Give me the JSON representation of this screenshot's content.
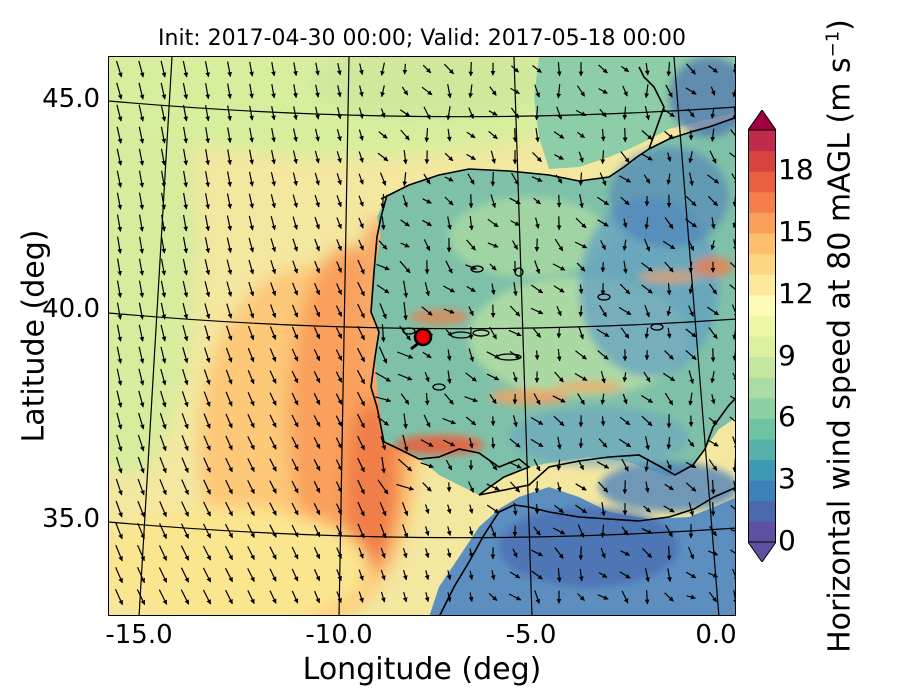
{
  "title": "Init: 2017-04-30 00:00; Valid: 2017-05-18 00:00",
  "x_axis": {
    "label": "Longitude (deg)",
    "ticks": [
      "-15.0",
      "-10.0",
      "-5.0",
      "0.0"
    ]
  },
  "y_axis": {
    "label": "Latitude (deg)",
    "ticks": [
      "45.0",
      "40.0",
      "35.0"
    ]
  },
  "colorbar": {
    "label_main": "Horizontal wind speed at 80 mAGL (m s",
    "label_exp": "−1",
    "label_close": ")",
    "ticks": [
      "0",
      "3",
      "6",
      "9",
      "12",
      "15",
      "18"
    ],
    "levels": [
      0,
      1,
      2,
      3,
      4,
      5,
      6,
      7,
      8,
      9,
      10,
      11,
      12,
      13,
      14,
      15,
      16,
      17,
      18,
      19,
      20
    ],
    "extend": "both",
    "colormap": "Spectral_r",
    "colors": [
      "#5e4fa2",
      "#4a68ad",
      "#3d81b9",
      "#3e9ab4",
      "#55b1a9",
      "#6fc3a5",
      "#8dd0a4",
      "#aadca4",
      "#c6e79f",
      "#dcf0a0",
      "#eef7a6",
      "#fcfbb7",
      "#fee99a",
      "#fed582",
      "#fdbe6d",
      "#f99f5b",
      "#f47f4b",
      "#e8603f",
      "#d8433f",
      "#bd2a4a"
    ],
    "under_color": "#5e4fa2",
    "over_color": "#9e0142"
  },
  "map": {
    "projection": "conic",
    "region": "Iberian Peninsula and adjacent Atlantic",
    "lon_range": [
      -16,
      0.3
    ],
    "lat_range": [
      32.5,
      46.2
    ],
    "meridians": [
      -15,
      -10,
      -5,
      0
    ],
    "parallels": [
      45,
      40,
      35
    ],
    "vectors": "wind arrows, mostly pointing south-southeast (northerly flow)",
    "marker": {
      "lon": -7.7,
      "lat": 39.3,
      "color": "#e60000"
    }
  }
}
